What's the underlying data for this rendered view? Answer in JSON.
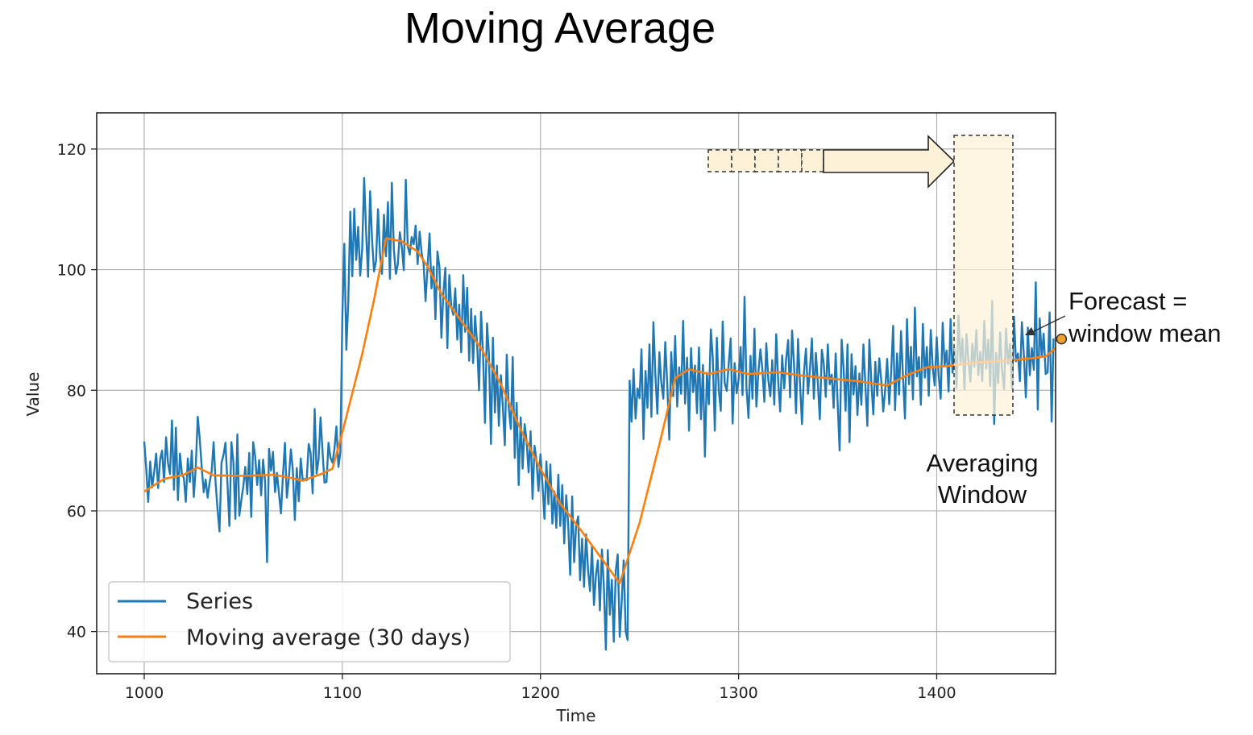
{
  "title": "Moving Average",
  "chart_data": {
    "type": "line",
    "title": "Moving Average",
    "xlabel": "Time",
    "ylabel": "Value",
    "xlim": [
      976,
      1460
    ],
    "ylim": [
      33,
      126
    ],
    "xticks": [
      1000,
      1100,
      1200,
      1300,
      1400
    ],
    "yticks": [
      40,
      60,
      80,
      100,
      120
    ],
    "grid": true,
    "legend_position": "lower-left",
    "series": [
      {
        "name": "Series",
        "color": "#1f77b4",
        "x_start": 1000,
        "values": [
          71.5,
          67.0,
          61.5,
          68.2,
          63.9,
          66.4,
          69.5,
          63.8,
          68.5,
          70.0,
          64.8,
          72.2,
          67.9,
          66.1,
          75.0,
          63.5,
          73.8,
          61.8,
          69.5,
          66.2,
          65.4,
          61.5,
          68.7,
          64.8,
          70.0,
          62.3,
          67.2,
          75.6,
          71.9,
          67.3,
          63.1,
          65.2,
          62.2,
          64.7,
          66.5,
          71.4,
          64.8,
          60.2,
          56.6,
          68.0,
          69.3,
          71.3,
          64.5,
          57.5,
          71.4,
          68.1,
          58.7,
          72.7,
          59.2,
          61.8,
          64.0,
          67.3,
          62.8,
          69.6,
          59.0,
          71.4,
          69.0,
          64.3,
          68.4,
          62.6,
          68.5,
          64.9,
          51.5,
          70.3,
          66.7,
          69.8,
          63.1,
          66.3,
          62.9,
          59.6,
          65.8,
          71.3,
          62.2,
          65.5,
          70.2,
          66.8,
          58.5,
          67.1,
          61.6,
          68.7,
          65.1,
          65.3,
          65.1,
          71.1,
          69.6,
          62.9,
          76.9,
          66.2,
          68.6,
          75.5,
          69.8,
          64.7,
          64.8,
          71.3,
          68.8,
          68.0,
          70.2,
          74.0,
          67.3,
          69.7,
          92.4,
          104.3,
          86.7,
          95.0,
          109.6,
          98.9,
          110.1,
          101.6,
          107.1,
          99.0,
          103.5,
          115.2,
          106.1,
          98.8,
          113.0,
          104.8,
          99.7,
          101.5,
          110.0,
          102.6,
          99.3,
          109.1,
          102.2,
          111.2,
          98.5,
          114.4,
          103.3,
          99.3,
          100.9,
          106.2,
          103.8,
          99.9,
          114.9,
          103.9,
          102.5,
          105.4,
          104.2,
          107.3,
          100.9,
          106.3,
          102.8,
          101.0,
          94.8,
          100.4,
          106.0,
          96.9,
          100.5,
          91.8,
          103.0,
          100.4,
          88.7,
          96.2,
          100.3,
          87.0,
          99.1,
          93.8,
          92.5,
          96.9,
          88.4,
          94.2,
          86.3,
          99.1,
          89.7,
          97.0,
          84.9,
          93.5,
          84.5,
          92.3,
          87.8,
          80.0,
          93.0,
          86.2,
          74.6,
          91.1,
          86.0,
          71.1,
          88.7,
          76.3,
          84.1,
          74.1,
          82.5,
          77.3,
          70.9,
          85.9,
          77.1,
          73.6,
          85.5,
          68.8,
          77.9,
          64.3,
          75.5,
          67.0,
          74.4,
          71.6,
          66.4,
          73.2,
          62.0,
          70.8,
          68.3,
          63.3,
          69.4,
          64.5,
          58.7,
          68.2,
          61.1,
          67.7,
          57.9,
          63.2,
          57.2,
          66.0,
          57.5,
          64.3,
          54.6,
          62.6,
          57.6,
          49.4,
          62.4,
          51.5,
          57.5,
          59.1,
          48.5,
          55.4,
          47.4,
          56.1,
          50.2,
          46.7,
          54.2,
          44.4,
          49.4,
          51.8,
          43.5,
          53.6,
          47.5,
          37.0,
          53.5,
          42.8,
          48.6,
          38.3,
          50.1,
          52.8,
          39.1,
          44.9,
          51.8,
          40.0,
          38.6,
          81.6,
          74.8,
          83.5,
          75.3,
          80.3,
          78.7,
          86.8,
          71.9,
          83.2,
          77.1,
          87.6,
          75.6,
          91.3,
          82.7,
          76.1,
          86.3,
          81.3,
          78.6,
          88.0,
          81.0,
          71.8,
          86.3,
          79.0,
          89.0,
          77.3,
          83.8,
          79.4,
          91.5,
          77.8,
          85.4,
          73.3,
          87.0,
          79.7,
          84.1,
          76.2,
          87.1,
          75.2,
          84.2,
          69.0,
          82.9,
          77.7,
          90.1,
          85.3,
          73.3,
          88.7,
          80.1,
          76.6,
          91.4,
          81.2,
          79.9,
          84.3,
          88.6,
          74.5,
          84.5,
          79.5,
          81.7,
          87.2,
          79.2,
          95.5,
          80.4,
          75.4,
          85.7,
          78.6,
          90.2,
          77.3,
          83.0,
          86.8,
          83.5,
          78.1,
          87.8,
          81.7,
          79.0,
          85.0,
          77.6,
          89.3,
          81.4,
          76.5,
          85.8,
          80.3,
          85.1,
          88.3,
          78.8,
          89.9,
          84.0,
          76.2,
          88.5,
          81.1,
          74.4,
          82.9,
          86.9,
          79.4,
          83.4,
          88.6,
          78.6,
          86.2,
          81.1,
          75.2,
          86.7,
          84.4,
          78.9,
          87.6,
          81.0,
          82.6,
          77.1,
          86.1,
          78.0,
          70.0,
          88.4,
          83.6,
          76.6,
          87.6,
          71.4,
          86.0,
          79.3,
          84.0,
          75.9,
          82.8,
          77.6,
          87.6,
          80.8,
          74.1,
          88.4,
          81.4,
          76.0,
          84.7,
          79.1,
          85.3,
          81.7,
          76.5,
          80.2,
          85.2,
          77.7,
          82.9,
          90.7,
          76.7,
          86.1,
          79.3,
          89.8,
          82.0,
          75.3,
          91.8,
          81.0,
          87.2,
          78.5,
          93.7,
          82.3,
          85.5,
          77.6,
          91.0,
          82.1,
          87.2,
          79.1,
          90.0,
          83.6,
          80.8,
          88.8,
          82.5,
          78.6,
          91.2,
          84.2,
          86.6,
          79.8,
          91.8,
          82.9,
          87.0,
          80.4,
          92.4,
          84.6,
          88.6,
          80.2,
          89.3,
          85.0,
          81.4,
          87.7,
          83.9,
          90.0,
          82.5,
          86.4,
          81.5,
          91.5,
          83.6,
          88.4,
          80.7,
          94.8,
          74.4,
          86.2,
          81.2,
          89.6,
          83.2,
          80.2,
          90.2,
          84.4,
          87.7,
          80.3,
          92.2,
          84.8,
          86.1,
          81.5,
          91.3,
          85.7,
          78.8,
          90.4,
          82.5,
          87.0,
          83.4,
          97.9,
          76.8,
          91.9,
          85.5,
          89.4,
          82.7,
          83.0,
          92.9,
          74.8,
          88.6
        ]
      },
      {
        "name": "Moving average (30 days)",
        "color": "#ff7f0e",
        "points": [
          [
            1000,
            63.2
          ],
          [
            1010,
            65.3
          ],
          [
            1020,
            66.0
          ],
          [
            1027,
            67.2
          ],
          [
            1035,
            65.9
          ],
          [
            1050,
            65.8
          ],
          [
            1065,
            66.0
          ],
          [
            1075,
            65.4
          ],
          [
            1080,
            65.0
          ],
          [
            1090,
            66.2
          ],
          [
            1095,
            67.0
          ],
          [
            1100,
            73.0
          ],
          [
            1110,
            86.0
          ],
          [
            1116,
            95.0
          ],
          [
            1122,
            105.2
          ],
          [
            1130,
            104.7
          ],
          [
            1138,
            103.0
          ],
          [
            1143,
            100.5
          ],
          [
            1150,
            96.0
          ],
          [
            1160,
            91.5
          ],
          [
            1170,
            87.0
          ],
          [
            1180,
            81.0
          ],
          [
            1190,
            73.5
          ],
          [
            1200,
            67.0
          ],
          [
            1210,
            61.2
          ],
          [
            1220,
            57.0
          ],
          [
            1230,
            52.5
          ],
          [
            1240,
            48.0
          ],
          [
            1250,
            58.0
          ],
          [
            1260,
            71.0
          ],
          [
            1268,
            82.0
          ],
          [
            1275,
            83.5
          ],
          [
            1285,
            82.7
          ],
          [
            1295,
            83.5
          ],
          [
            1305,
            82.7
          ],
          [
            1320,
            83.0
          ],
          [
            1330,
            82.5
          ],
          [
            1345,
            82.0
          ],
          [
            1360,
            81.5
          ],
          [
            1375,
            80.8
          ],
          [
            1385,
            82.5
          ],
          [
            1395,
            83.8
          ],
          [
            1405,
            84.0
          ],
          [
            1420,
            84.6
          ],
          [
            1430,
            84.8
          ],
          [
            1445,
            85.2
          ],
          [
            1455,
            85.6
          ],
          [
            1462,
            87.5
          ]
        ]
      }
    ],
    "annotations": [
      {
        "text_lines": [
          "Averaging",
          "Window"
        ],
        "window_x": [
          1430,
          1462
        ]
      },
      {
        "text_lines": [
          "Forecast =",
          "window mean"
        ],
        "point": [
          1463,
          88.5
        ]
      }
    ]
  }
}
